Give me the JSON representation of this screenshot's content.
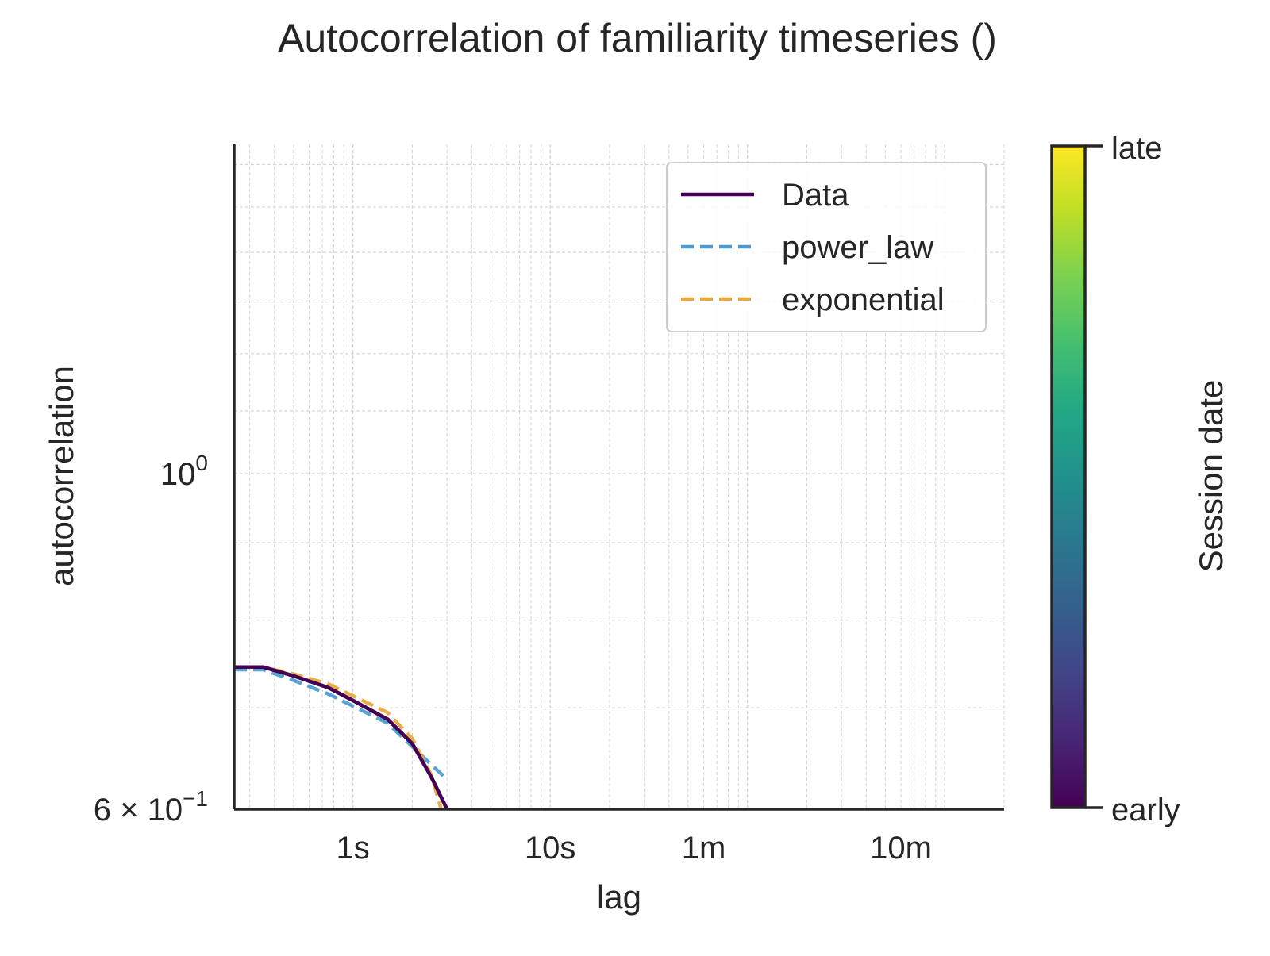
{
  "chart_data": {
    "type": "line",
    "title": "Autocorrelation of familiarity timeseries ()",
    "xlabel": "lag",
    "ylabel": "autocorrelation",
    "xscale": "log",
    "yscale": "log",
    "xlim": [
      0.25,
      2000
    ],
    "ylim": [
      0.6,
      1.65
    ],
    "xticks": [
      {
        "value": 1,
        "label": "1s"
      },
      {
        "value": 10,
        "label": "10s"
      },
      {
        "value": 60,
        "label": "1m"
      },
      {
        "value": 600,
        "label": "10m"
      }
    ],
    "yticks": [
      {
        "value": 0.6,
        "base": "6 × 10",
        "exp": "−1"
      },
      {
        "value": 1.0,
        "base": "10",
        "exp": "0"
      }
    ],
    "grid": true,
    "legend": {
      "placement": "top-right",
      "entries": [
        {
          "label": "Data",
          "color": "#440154",
          "style": "solid"
        },
        {
          "label": "power_law",
          "color": "#4a9bd0",
          "style": "dashed"
        },
        {
          "label": "exponential",
          "color": "#e8a83e",
          "style": "dashed"
        }
      ]
    },
    "series": [
      {
        "name": "Data",
        "color": "#440154",
        "style": "solid",
        "x": [
          0.25,
          0.35,
          0.5,
          0.75,
          1.0,
          1.5,
          2.0,
          2.5,
          3.0
        ],
        "y": [
          0.745,
          0.745,
          0.735,
          0.722,
          0.708,
          0.688,
          0.663,
          0.63,
          0.6
        ]
      },
      {
        "name": "power_law",
        "color": "#4a9bd0",
        "style": "dashed",
        "x": [
          0.25,
          0.35,
          0.5,
          0.75,
          1.0,
          1.5,
          2.0,
          2.5,
          3.0
        ],
        "y": [
          0.742,
          0.742,
          0.73,
          0.715,
          0.702,
          0.684,
          0.66,
          0.642,
          0.628
        ]
      },
      {
        "name": "exponential",
        "color": "#e8a83e",
        "style": "dashed",
        "x": [
          0.25,
          0.35,
          0.5,
          0.75,
          1.0,
          1.5,
          2.0,
          2.5,
          2.8
        ],
        "y": [
          0.745,
          0.745,
          0.737,
          0.726,
          0.713,
          0.695,
          0.668,
          0.632,
          0.6
        ]
      }
    ],
    "colorbar": {
      "label": "Session date",
      "top_label": "late",
      "bottom_label": "early",
      "colormap": "viridis"
    }
  }
}
